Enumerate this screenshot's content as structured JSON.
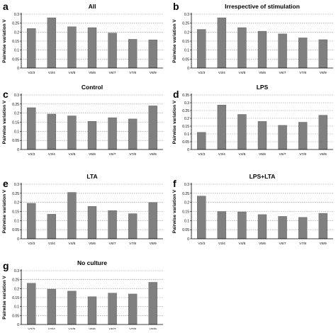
{
  "figure": {
    "bar_color": "#808080",
    "bar_stroke": "#555555",
    "grid_color": "#888888",
    "axis_color": "#000000"
  },
  "chart_data": [
    {
      "type": "bar",
      "panel_letter": "a",
      "title": "All",
      "ylabel": "Pairwise variation V",
      "categories": [
        "V2/3",
        "V3/4",
        "V4/5",
        "V5/6",
        "V6/7",
        "V7/8",
        "V8/9"
      ],
      "values": [
        0.22,
        0.28,
        0.23,
        0.225,
        0.195,
        0.16,
        0.157
      ],
      "ylim": [
        0,
        0.3
      ],
      "yticks": [
        "0",
        "0.05",
        "0.1",
        "0.15",
        "0.2",
        "0.25",
        "0.3"
      ],
      "grid": true
    },
    {
      "type": "bar",
      "panel_letter": "b",
      "title": "Irrespective of stimulation",
      "ylabel": "Pairwise variation V",
      "categories": [
        "V2/3",
        "V3/4",
        "V4/5",
        "V5/6",
        "V6/7",
        "V7/8",
        "V8/9"
      ],
      "values": [
        0.215,
        0.28,
        0.225,
        0.205,
        0.19,
        0.168,
        0.158
      ],
      "ylim": [
        0,
        0.3
      ],
      "yticks": [
        "0",
        "0.05",
        "0.1",
        "0.15",
        "0.2",
        "0.25",
        "0.3"
      ],
      "grid": true
    },
    {
      "type": "bar",
      "panel_letter": "c",
      "title": "Control",
      "ylabel": "Pairwise variation V",
      "categories": [
        "V2/3",
        "V3/4",
        "V4/5",
        "V5/6",
        "V6/7",
        "V7/8",
        "V8/9"
      ],
      "values": [
        0.23,
        0.195,
        0.185,
        0.155,
        0.175,
        0.168,
        0.24
      ],
      "ylim": [
        0,
        0.3
      ],
      "yticks": [
        "0",
        "0.05",
        "0.1",
        "0.15",
        "0.2",
        "0.25",
        "0.3"
      ],
      "grid": true
    },
    {
      "type": "bar",
      "panel_letter": "d",
      "title": "LPS",
      "ylabel": "Pairwise variation V",
      "categories": [
        "V2/3",
        "V3/4",
        "V4/5",
        "V5/6",
        "V6/7",
        "V7/8",
        "V8/9"
      ],
      "values": [
        0.11,
        0.285,
        0.225,
        0.18,
        0.155,
        0.175,
        0.22
      ],
      "ylim": [
        0,
        0.35
      ],
      "yticks": [
        "0",
        "0.05",
        "0.1",
        "0.15",
        "0.2",
        "0.25",
        "0.3",
        "0.35"
      ],
      "grid": true
    },
    {
      "type": "bar",
      "panel_letter": "e",
      "title": "LTA",
      "ylabel": "Pairwise variation V",
      "categories": [
        "V2/3",
        "V3/4",
        "V4/5",
        "V5/6",
        "V6/7",
        "V7/8",
        "V8/9"
      ],
      "values": [
        0.195,
        0.135,
        0.255,
        0.178,
        0.155,
        0.138,
        0.2
      ],
      "ylim": [
        0,
        0.3
      ],
      "yticks": [
        "0",
        "0.05",
        "0.1",
        "0.15",
        "0.2",
        "0.25",
        "0.3"
      ],
      "grid": true
    },
    {
      "type": "bar",
      "panel_letter": "f",
      "title": "LPS+LTA",
      "ylabel": "Pairwise variation V",
      "categories": [
        "V2/3",
        "V3/4",
        "V4/5",
        "V5/6",
        "V6/7",
        "V7/8",
        "V8/9"
      ],
      "values": [
        0.235,
        0.15,
        0.148,
        0.133,
        0.123,
        0.118,
        0.14
      ],
      "ylim": [
        0,
        0.3
      ],
      "yticks": [
        "0",
        "0.05",
        "0.1",
        "0.15",
        "0.2",
        "0.25",
        "0.3"
      ],
      "grid": true
    },
    {
      "type": "bar",
      "panel_letter": "g",
      "title": "No culture",
      "ylabel": "Pairwise variation V",
      "categories": [
        "V2/3",
        "V3/4",
        "V4/5",
        "V5/6",
        "V6/7",
        "V7/8",
        "V8/9"
      ],
      "values": [
        0.23,
        0.197,
        0.186,
        0.155,
        0.175,
        0.17,
        0.235
      ],
      "ylim": [
        0,
        0.3
      ],
      "yticks": [
        "0",
        "0.05",
        "0.1",
        "0.15",
        "0.2",
        "0.25",
        "0.3"
      ],
      "grid": true
    }
  ]
}
